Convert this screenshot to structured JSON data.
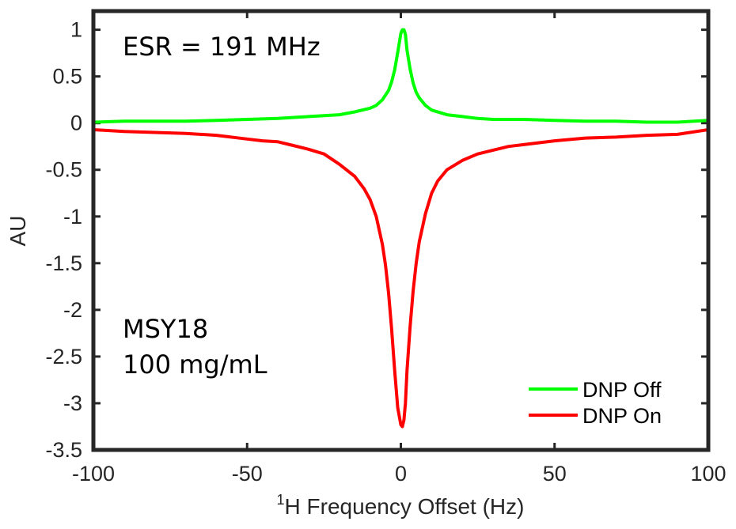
{
  "chart_data": {
    "type": "line",
    "xlabel_superscript": "1",
    "xlabel": "H Frequency Offset (Hz)",
    "ylabel": "AU",
    "xlim": [
      -100,
      100
    ],
    "ylim": [
      -3.5,
      1.2
    ],
    "xticks": [
      -100,
      -50,
      0,
      50,
      100
    ],
    "xtick_labels": [
      "-100",
      "-50",
      "0",
      "50",
      "100"
    ],
    "yticks": [
      1,
      0.5,
      0,
      -0.5,
      -1,
      -1.5,
      -2,
      -2.5,
      -3,
      -3.5
    ],
    "ytick_labels": [
      "1",
      "0.5",
      "0",
      "-0.5",
      "-1",
      "-1.5",
      "-2",
      "-2.5",
      "-3",
      "-3.5"
    ],
    "annotations": {
      "esr": "ESR = 191 MHz",
      "sample_name": "MSY18",
      "concentration": "100 mg/mL"
    },
    "legend_position": "bottom-right",
    "series": [
      {
        "name": "DNP Off",
        "color": "#00ff00",
        "x": [
          -100,
          -90,
          -80,
          -70,
          -60,
          -50,
          -40,
          -30,
          -20,
          -15,
          -10,
          -8,
          -6,
          -4,
          -3,
          -2,
          -1,
          0,
          0.5,
          1,
          1.5,
          2,
          3,
          4,
          5,
          6,
          8,
          10,
          15,
          20,
          25,
          30,
          40,
          50,
          60,
          70,
          80,
          90,
          100
        ],
        "values": [
          0.01,
          0.02,
          0.02,
          0.02,
          0.03,
          0.04,
          0.05,
          0.07,
          0.09,
          0.12,
          0.16,
          0.19,
          0.25,
          0.35,
          0.44,
          0.57,
          0.76,
          0.96,
          1.0,
          1.0,
          0.95,
          0.78,
          0.58,
          0.43,
          0.33,
          0.27,
          0.19,
          0.14,
          0.09,
          0.07,
          0.05,
          0.04,
          0.04,
          0.03,
          0.02,
          0.02,
          0.01,
          0.01,
          0.03
        ]
      },
      {
        "name": "DNP On",
        "color": "#ff0000",
        "x": [
          -100,
          -90,
          -80,
          -70,
          -60,
          -50,
          -45,
          -40,
          -35,
          -30,
          -25,
          -20,
          -15,
          -12,
          -10,
          -8,
          -6,
          -5,
          -4,
          -3,
          -2,
          -1,
          0,
          0.5,
          1,
          1.5,
          2,
          3,
          4,
          5,
          6,
          8,
          10,
          12,
          15,
          20,
          25,
          30,
          35,
          40,
          50,
          60,
          70,
          80,
          90,
          100
        ],
        "values": [
          -0.07,
          -0.09,
          -0.1,
          -0.11,
          -0.13,
          -0.17,
          -0.19,
          -0.2,
          -0.24,
          -0.28,
          -0.33,
          -0.44,
          -0.57,
          -0.7,
          -0.82,
          -1.0,
          -1.3,
          -1.52,
          -1.82,
          -2.2,
          -2.65,
          -3.05,
          -3.23,
          -3.25,
          -3.18,
          -3.0,
          -2.65,
          -2.18,
          -1.8,
          -1.5,
          -1.27,
          -0.97,
          -0.75,
          -0.62,
          -0.5,
          -0.4,
          -0.33,
          -0.29,
          -0.25,
          -0.23,
          -0.19,
          -0.16,
          -0.15,
          -0.13,
          -0.12,
          -0.07
        ]
      }
    ]
  }
}
